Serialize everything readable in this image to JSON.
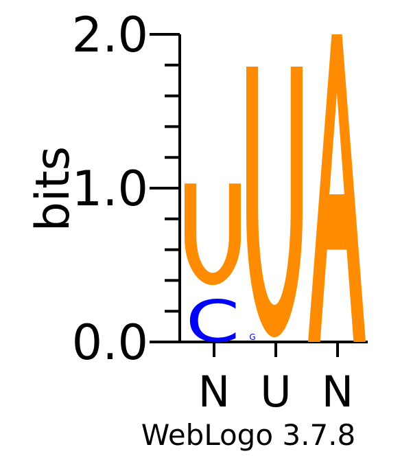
{
  "chart_data": {
    "type": "sequence-logo",
    "ylabel": "bits",
    "ylim": [
      0.0,
      2.0
    ],
    "y_ticks": [
      "0.0",
      "1.0",
      "2.0"
    ],
    "y_minor_step": 0.2,
    "positions": [
      {
        "label": "N",
        "stack": [
          {
            "letter": "C",
            "bits": 0.37
          },
          {
            "letter": "U",
            "bits": 0.66
          }
        ]
      },
      {
        "label": "U",
        "stack": [
          {
            "letter": "G",
            "bits": 0.03
          },
          {
            "letter": "U",
            "bits": 1.76
          }
        ]
      },
      {
        "label": "N",
        "stack": [
          {
            "letter": "A",
            "bits": 2.0
          }
        ]
      }
    ],
    "colors": {
      "U": "#ff8c00",
      "A": "#ff8c00",
      "C": "#0000ff",
      "G": "#0000ff"
    },
    "footer": "WebLogo 3.7.8"
  }
}
